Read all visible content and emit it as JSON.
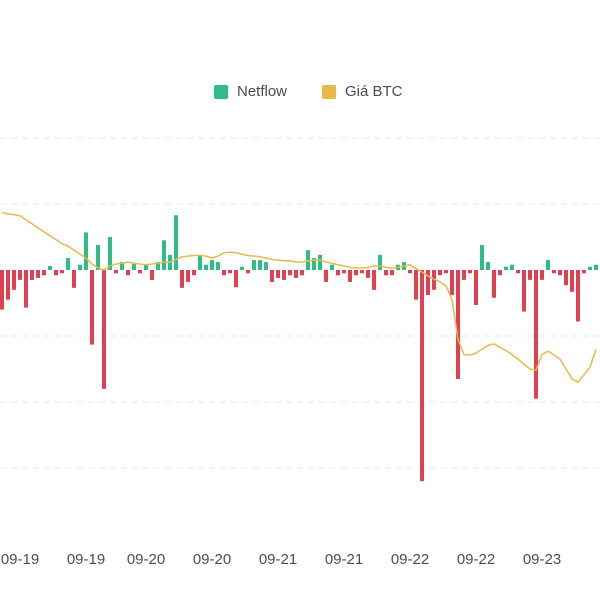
{
  "chart_data": {
    "type": "bar",
    "categories": [
      null,
      null,
      null,
      "09-19",
      null,
      null,
      null,
      null,
      null,
      null,
      null,
      null,
      null,
      null,
      "09-19",
      null,
      null,
      null,
      null,
      null,
      null,
      null,
      null,
      null,
      "09-20",
      null,
      null,
      null,
      null,
      null,
      null,
      null,
      null,
      null,
      null,
      "09-20",
      null,
      null,
      null,
      null,
      null,
      null,
      null,
      null,
      null,
      null,
      "09-21",
      null,
      null,
      null,
      null,
      null,
      null,
      null,
      null,
      null,
      null,
      "09-21",
      null,
      null,
      null,
      null,
      null,
      null,
      null,
      null,
      null,
      null,
      "09-22",
      null,
      null,
      null,
      null,
      null,
      null,
      null,
      null,
      null,
      null,
      "09-22",
      null,
      null,
      null,
      null,
      null,
      null,
      null,
      null,
      null,
      null,
      "09-23",
      null,
      null,
      null,
      null,
      null,
      null,
      null,
      null,
      null
    ],
    "series": [
      {
        "name": "Netflow",
        "color": "#2ebd85",
        "negative_color": "#e0404f",
        "values": [
          -60,
          -45,
          -30,
          -15,
          -57,
          -15,
          -12,
          -8,
          6,
          -8,
          -5,
          18,
          -27,
          8,
          57,
          -113,
          38,
          -180,
          50,
          -5,
          12,
          -8,
          9,
          -5,
          8,
          -15,
          12,
          45,
          23,
          83,
          -27,
          -18,
          -8,
          23,
          8,
          15,
          12,
          -8,
          -5,
          -26,
          5,
          -5,
          15,
          15,
          12,
          -18,
          -12,
          -15,
          -8,
          -12,
          -8,
          30,
          18,
          23,
          -18,
          8,
          -8,
          -5,
          -18,
          -8,
          -5,
          -12,
          -30,
          23,
          -8,
          -8,
          8,
          12,
          -5,
          -45,
          -320,
          -38,
          -30,
          -8,
          -5,
          -38,
          -165,
          -15,
          -5,
          -53,
          38,
          12,
          -42,
          -8,
          5,
          8,
          -5,
          -63,
          -15,
          -195,
          -15,
          15,
          -5,
          -8,
          -23,
          -33,
          -78,
          -5,
          5,
          8
        ]
      },
      {
        "name": "Giá BTC",
        "color": "#e8b84b",
        "type": "line",
        "axis": "y2",
        "values": [
          87,
          85,
          84,
          82,
          76,
          70,
          64,
          58,
          52,
          46,
          40,
          36,
          30,
          24,
          18,
          9,
          3,
          0,
          6,
          9,
          10,
          12,
          10,
          9,
          8,
          9,
          10,
          12,
          12,
          16,
          20,
          21,
          22,
          22,
          21,
          18,
          21,
          26,
          27,
          26,
          24,
          22,
          21,
          20,
          18,
          16,
          15,
          14,
          14,
          12,
          12,
          14,
          15,
          15,
          12,
          10,
          8,
          6,
          4,
          3,
          3,
          4,
          6,
          6,
          4,
          3,
          4,
          6,
          8,
          2,
          -3,
          -9,
          -14,
          -18,
          -24,
          -45,
          -105,
          -128,
          -129,
          -126,
          -120,
          -114,
          -112,
          -117,
          -122,
          -128,
          -135,
          -143,
          -150,
          -152,
          -128,
          -123,
          -129,
          -135,
          -150,
          -165,
          -170,
          -159,
          -147,
          -120
        ]
      }
    ],
    "ylim": [
      -400,
      300
    ],
    "yticks": [
      -300,
      -200,
      -100,
      100,
      200
    ],
    "y2lim": [
      -400,
      300
    ],
    "grid": true,
    "legend": "top"
  }
}
